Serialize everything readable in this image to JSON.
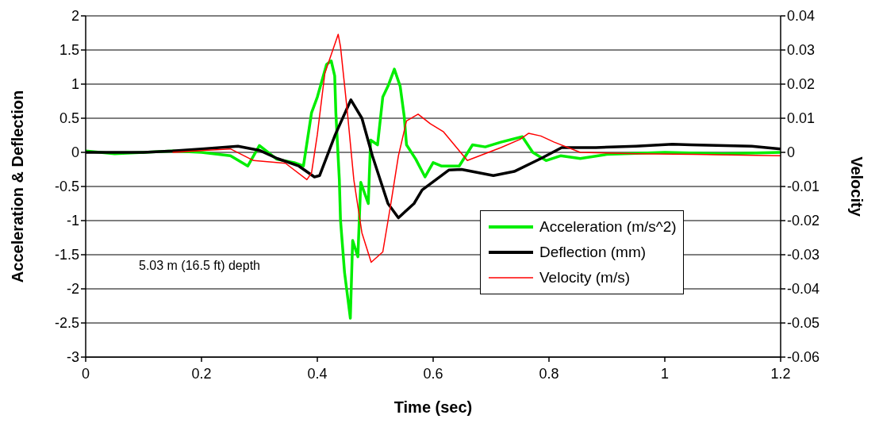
{
  "chart_data": {
    "type": "line",
    "xlabel": "Time (sec)",
    "ylabel": "Acceleration & Deflection",
    "y2label": "Velocity",
    "annotations": [
      "5.03 m (16.5 ft) depth"
    ],
    "xlim": [
      0,
      1.2
    ],
    "xticks": [
      0,
      0.2,
      0.4,
      0.6,
      0.8,
      1,
      1.2
    ],
    "ylim": [
      -3,
      2
    ],
    "yticks": [
      -3,
      -2.5,
      -2,
      -1.5,
      -1,
      -0.5,
      0,
      0.5,
      1,
      1.5,
      2
    ],
    "y2lim": [
      -0.06,
      0.04
    ],
    "y2ticks": [
      -0.06,
      -0.05,
      -0.04,
      -0.03,
      -0.02,
      -0.01,
      0,
      0.01,
      0.02,
      0.03,
      0.04
    ],
    "grid": "y",
    "legend": "bottom right",
    "marker": "none",
    "line_style": "solid",
    "series": [
      {
        "name": "Acceleration (m/s^2)",
        "color": "#00ee00",
        "x": [
          0,
          0.05,
          0.1,
          0.15,
          0.2,
          0.25,
          0.28,
          0.3,
          0.33,
          0.36,
          0.376,
          0.39,
          0.4,
          0.416,
          0.424,
          0.43,
          0.432,
          0.438,
          0.44,
          0.447,
          0.457,
          0.461,
          0.47,
          0.475,
          0.488,
          0.492,
          0.504,
          0.513,
          0.522,
          0.533,
          0.543,
          0.55,
          0.554,
          0.57,
          0.586,
          0.6,
          0.614,
          0.645,
          0.668,
          0.69,
          0.717,
          0.754,
          0.772,
          0.795,
          0.82,
          0.854,
          0.9,
          1.0,
          1.1,
          1.2
        ],
        "values": [
          0.02,
          -0.02,
          0,
          0.02,
          0,
          -0.05,
          -0.2,
          0.1,
          -0.1,
          -0.15,
          -0.2,
          0.58,
          0.81,
          1.29,
          1.34,
          1.12,
          0.58,
          -0.4,
          -0.99,
          -1.76,
          -2.43,
          -1.29,
          -1.53,
          -0.44,
          -0.75,
          0.18,
          0.11,
          0.81,
          0.97,
          1.22,
          0.97,
          0.53,
          0.11,
          -0.1,
          -0.36,
          -0.15,
          -0.2,
          -0.2,
          0.11,
          0.08,
          0.15,
          0.23,
          0,
          -0.12,
          -0.05,
          -0.09,
          -0.03,
          0,
          -0.02,
          0
        ]
      },
      {
        "name": "Deflection (mm)",
        "color": "#000000",
        "x": [
          0,
          0.1,
          0.15,
          0.2,
          0.263,
          0.3,
          0.331,
          0.368,
          0.395,
          0.404,
          0.431,
          0.458,
          0.477,
          0.495,
          0.522,
          0.54,
          0.567,
          0.581,
          0.627,
          0.649,
          0.704,
          0.74,
          0.786,
          0.822,
          0.881,
          0.95,
          1.013,
          1.045,
          1.15,
          1.2
        ],
        "values": [
          0,
          0,
          0.02,
          0.05,
          0.09,
          0.03,
          -0.09,
          -0.2,
          -0.36,
          -0.34,
          0.26,
          0.77,
          0.5,
          -0.05,
          -0.75,
          -0.96,
          -0.75,
          -0.55,
          -0.26,
          -0.25,
          -0.34,
          -0.28,
          -0.09,
          0.07,
          0.07,
          0.09,
          0.12,
          0.11,
          0.09,
          0.05
        ]
      },
      {
        "name": "Velocity (m/s)",
        "color": "#ff0000",
        "axis": "y2",
        "x": [
          0.15,
          0.25,
          0.29,
          0.345,
          0.382,
          0.39,
          0.4,
          0.413,
          0.436,
          0.44,
          0.452,
          0.463,
          0.477,
          0.493,
          0.513,
          0.527,
          0.54,
          0.554,
          0.574,
          0.595,
          0.618,
          0.659,
          0.717,
          0.75,
          0.765,
          0.786,
          0.809,
          0.854,
          0.95,
          1.05,
          1.2
        ],
        "values": [
          0,
          0.001,
          -0.0024,
          -0.0032,
          -0.008,
          -0.006,
          0.0052,
          0.0232,
          0.0346,
          0.031,
          0.0116,
          -0.008,
          -0.0236,
          -0.0322,
          -0.0292,
          -0.015,
          -0.001,
          0.0092,
          0.0112,
          0.0084,
          0.006,
          -0.0024,
          0.0014,
          0.0038,
          0.0056,
          0.0048,
          0.003,
          0,
          -0.0004,
          -0.0006,
          -0.001
        ]
      }
    ]
  }
}
